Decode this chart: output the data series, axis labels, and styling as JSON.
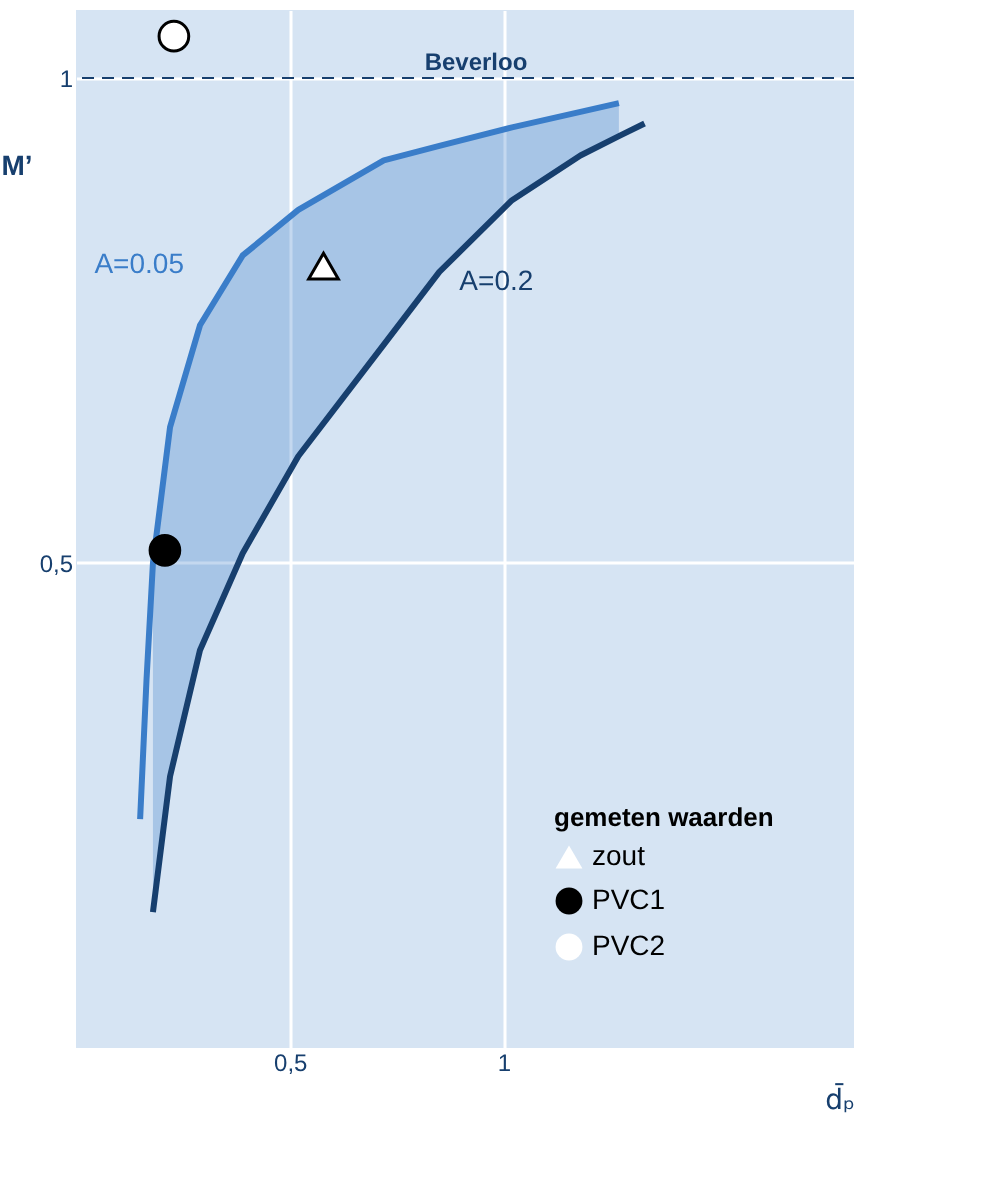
{
  "chart_data": {
    "type": "line",
    "xlabel": "d̄ₚ",
    "ylabel": "M’",
    "legend_title": "gemeten waarden",
    "legend": "bottom right",
    "grid": true,
    "xlim": [
      0,
      1.82
    ],
    "ylim": [
      0,
      1.07
    ],
    "xticks": [
      {
        "value": 0.5,
        "label": "0,5"
      },
      {
        "value": 1,
        "label": "1"
      }
    ],
    "yticks": [
      {
        "value": 0.5,
        "label": "0,5"
      },
      {
        "value": 1,
        "label": "1"
      }
    ],
    "x": [
      0.15,
      0.165,
      0.18,
      0.22,
      0.29,
      0.39,
      0.52,
      0.72,
      0.85,
      1.02,
      1.18,
      1.27,
      1.33
    ],
    "series": [
      {
        "name": "A=0.05",
        "color": "#3a7dc9",
        "values": [
          0.236,
          0.38,
          0.5,
          0.64,
          0.745,
          0.817,
          0.864,
          0.915,
          0.93,
          0.949,
          0.965,
          0.974,
          null
        ],
        "upper": [
          null,
          null,
          0.5,
          0.64,
          0.745,
          0.817,
          0.864,
          0.915,
          0.93,
          0.949,
          0.965,
          0.974,
          null
        ],
        "lower": [
          null,
          null,
          0.14,
          0.28,
          0.41,
          0.51,
          0.61,
          0.725,
          0.8,
          0.874,
          0.92,
          0.94,
          null
        ]
      },
      {
        "name": "A=0.2",
        "color": "#173f6e",
        "values": [
          null,
          null,
          0.14,
          0.28,
          0.41,
          0.51,
          0.61,
          0.725,
          0.8,
          0.874,
          0.92,
          0.94,
          0.953
        ]
      },
      {
        "name": "zout",
        "type": "scatter",
        "marker": "triangle",
        "color": "#ffffff",
        "x": [
          0.579
        ],
        "values": [
          0.806
        ]
      },
      {
        "name": "PVC1",
        "type": "scatter",
        "marker": "circle",
        "color": "#000000",
        "x": [
          0.208
        ],
        "values": [
          0.513
        ]
      },
      {
        "name": "PVC2",
        "type": "scatter",
        "marker": "circle",
        "color": "#ffffff",
        "x": [
          0.229
        ],
        "values": [
          1.043
        ]
      }
    ],
    "ref_lines": [
      {
        "axis": "y",
        "value": 1,
        "label": "Beverloo",
        "line_style": "dashed",
        "color": "#173f6e"
      }
    ]
  }
}
